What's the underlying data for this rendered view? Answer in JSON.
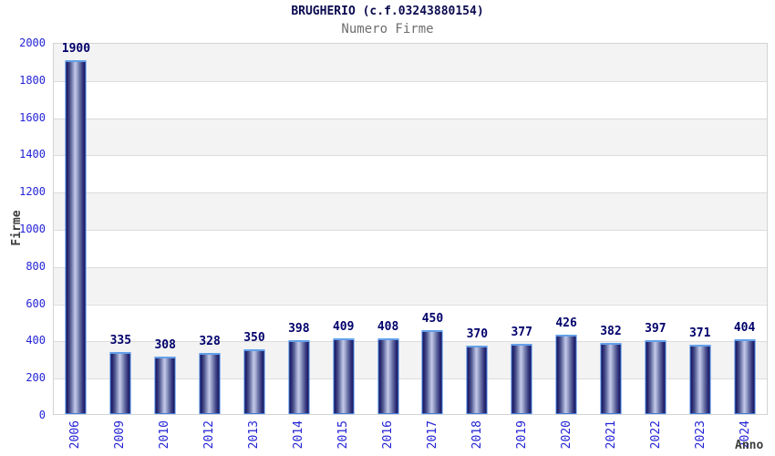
{
  "title": "BRUGHERIO (c.f.03243880154)",
  "subtitle": "Numero Firme",
  "chart_data": {
    "type": "bar",
    "title": "BRUGHERIO (c.f.03243880154)",
    "subtitle": "Numero Firme",
    "xlabel": "Anno",
    "ylabel": "Firme",
    "categories": [
      "2006",
      "2009",
      "2010",
      "2012",
      "2013",
      "2014",
      "2015",
      "2016",
      "2017",
      "2018",
      "2019",
      "2020",
      "2021",
      "2022",
      "2023",
      "2024"
    ],
    "values": [
      1900,
      335,
      308,
      328,
      350,
      398,
      409,
      408,
      450,
      370,
      377,
      426,
      382,
      397,
      371,
      404
    ],
    "ylim": [
      0,
      2000
    ],
    "ytick_step": 200,
    "grid": true,
    "legend": "none",
    "bands": "alternating horizontal gray/white every 200 units, gray band at top (1800-2000)",
    "colors": {
      "bar_dark": "#16165c",
      "bar_light": "#c3c9e6",
      "bar_border": "#3f7ede",
      "bar_cap": "#63a0ea",
      "tick_label": "#2323d7",
      "value_label": "#00006b",
      "title": "#0a0a50",
      "subtitle": "#6e6e6e",
      "axis_title": "#3d3d3d",
      "band_gray": "#f3f3f3",
      "gridline": "#dcdcdc",
      "plot_border": "#d3d3d3"
    }
  }
}
